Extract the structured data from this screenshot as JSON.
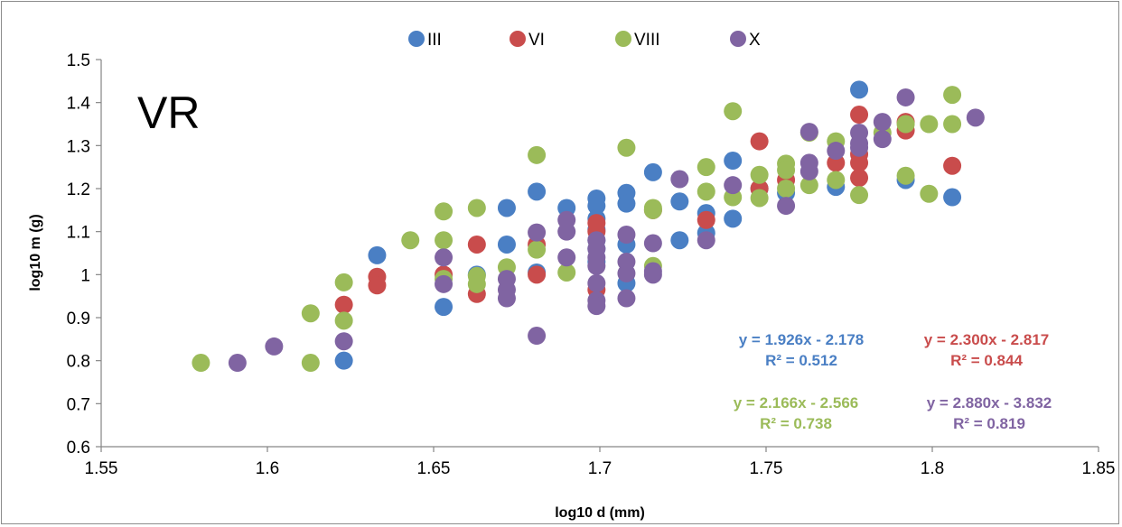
{
  "chart_data": {
    "type": "scatter",
    "panel_label": "VR",
    "xlabel": "log10 d (mm)",
    "ylabel": "log10 m (g)",
    "xlim": [
      1.55,
      1.85
    ],
    "ylim": [
      0.6,
      1.5
    ],
    "xticks": [
      "1.55",
      "1.6",
      "1.65",
      "1.7",
      "1.75",
      "1.8",
      "1.85"
    ],
    "yticks": [
      "0.6",
      "0.7",
      "0.8",
      "0.9",
      "1",
      "1.1",
      "1.2",
      "1.3",
      "1.4",
      "1.5"
    ],
    "grid": false,
    "legend_position": "top",
    "series": [
      {
        "name": "III",
        "color": "#4a7fc4",
        "points": [
          [
            1.623,
            0.8
          ],
          [
            1.633,
            1.045
          ],
          [
            1.653,
            0.925
          ],
          [
            1.663,
            1.0
          ],
          [
            1.672,
            1.07
          ],
          [
            1.672,
            1.155
          ],
          [
            1.681,
            1.193
          ],
          [
            1.681,
            1.005
          ],
          [
            1.69,
            1.155
          ],
          [
            1.699,
            1.177
          ],
          [
            1.699,
            1.16
          ],
          [
            1.699,
            1.13
          ],
          [
            1.699,
            1.105
          ],
          [
            1.699,
            1.08
          ],
          [
            1.699,
            1.06
          ],
          [
            1.699,
            1.03
          ],
          [
            1.708,
            1.19
          ],
          [
            1.708,
            1.165
          ],
          [
            1.708,
            1.07
          ],
          [
            1.708,
            0.98
          ],
          [
            1.716,
            1.238
          ],
          [
            1.724,
            1.17
          ],
          [
            1.724,
            1.08
          ],
          [
            1.732,
            1.143
          ],
          [
            1.732,
            1.097
          ],
          [
            1.74,
            1.265
          ],
          [
            1.74,
            1.13
          ],
          [
            1.748,
            1.2
          ],
          [
            1.756,
            1.19
          ],
          [
            1.771,
            1.204
          ],
          [
            1.778,
            1.43
          ],
          [
            1.792,
            1.22
          ],
          [
            1.806,
            1.18
          ]
        ]
      },
      {
        "name": "VI",
        "color": "#c94c4c",
        "points": [
          [
            1.623,
            0.93
          ],
          [
            1.633,
            0.995
          ],
          [
            1.633,
            0.975
          ],
          [
            1.653,
            1.0
          ],
          [
            1.663,
            1.07
          ],
          [
            1.663,
            0.955
          ],
          [
            1.681,
            1.07
          ],
          [
            1.681,
            1.0
          ],
          [
            1.699,
            1.12
          ],
          [
            1.699,
            1.1
          ],
          [
            1.699,
            0.965
          ],
          [
            1.716,
            1.15
          ],
          [
            1.732,
            1.127
          ],
          [
            1.748,
            1.31
          ],
          [
            1.748,
            1.2
          ],
          [
            1.756,
            1.22
          ],
          [
            1.771,
            1.26
          ],
          [
            1.778,
            1.372
          ],
          [
            1.778,
            1.28
          ],
          [
            1.778,
            1.26
          ],
          [
            1.778,
            1.225
          ],
          [
            1.792,
            1.355
          ],
          [
            1.792,
            1.335
          ],
          [
            1.806,
            1.253
          ]
        ]
      },
      {
        "name": "VIII",
        "color": "#9bbb59",
        "points": [
          [
            1.58,
            0.795
          ],
          [
            1.613,
            0.91
          ],
          [
            1.613,
            0.795
          ],
          [
            1.623,
            0.982
          ],
          [
            1.623,
            0.893
          ],
          [
            1.643,
            1.08
          ],
          [
            1.653,
            1.147
          ],
          [
            1.653,
            1.08
          ],
          [
            1.653,
            0.99
          ],
          [
            1.663,
            1.155
          ],
          [
            1.663,
            0.997
          ],
          [
            1.663,
            0.978
          ],
          [
            1.672,
            1.017
          ],
          [
            1.681,
            1.278
          ],
          [
            1.681,
            1.058
          ],
          [
            1.69,
            1.005
          ],
          [
            1.708,
            1.295
          ],
          [
            1.716,
            1.155
          ],
          [
            1.716,
            1.15
          ],
          [
            1.716,
            1.02
          ],
          [
            1.732,
            1.25
          ],
          [
            1.732,
            1.193
          ],
          [
            1.74,
            1.38
          ],
          [
            1.74,
            1.18
          ],
          [
            1.748,
            1.232
          ],
          [
            1.748,
            1.178
          ],
          [
            1.756,
            1.258
          ],
          [
            1.756,
            1.243
          ],
          [
            1.756,
            1.2
          ],
          [
            1.763,
            1.33
          ],
          [
            1.763,
            1.208
          ],
          [
            1.771,
            1.31
          ],
          [
            1.771,
            1.22
          ],
          [
            1.778,
            1.185
          ],
          [
            1.785,
            1.33
          ],
          [
            1.792,
            1.35
          ],
          [
            1.792,
            1.23
          ],
          [
            1.799,
            1.35
          ],
          [
            1.799,
            1.188
          ],
          [
            1.806,
            1.418
          ],
          [
            1.806,
            1.35
          ]
        ]
      },
      {
        "name": "X",
        "color": "#8064a2",
        "points": [
          [
            1.591,
            0.795
          ],
          [
            1.602,
            0.833
          ],
          [
            1.623,
            0.845
          ],
          [
            1.653,
            1.04
          ],
          [
            1.653,
            0.978
          ],
          [
            1.672,
            0.99
          ],
          [
            1.672,
            0.965
          ],
          [
            1.672,
            0.945
          ],
          [
            1.681,
            1.098
          ],
          [
            1.681,
            0.858
          ],
          [
            1.69,
            1.127
          ],
          [
            1.69,
            1.1
          ],
          [
            1.69,
            1.04
          ],
          [
            1.699,
            1.08
          ],
          [
            1.699,
            1.06
          ],
          [
            1.699,
            1.04
          ],
          [
            1.699,
            1.02
          ],
          [
            1.699,
            0.98
          ],
          [
            1.699,
            0.94
          ],
          [
            1.699,
            0.927
          ],
          [
            1.708,
            1.093
          ],
          [
            1.708,
            1.03
          ],
          [
            1.708,
            1.003
          ],
          [
            1.708,
            0.945
          ],
          [
            1.716,
            1.073
          ],
          [
            1.716,
            1.008
          ],
          [
            1.716,
            1.0
          ],
          [
            1.724,
            1.222
          ],
          [
            1.732,
            1.08
          ],
          [
            1.74,
            1.208
          ],
          [
            1.756,
            1.16
          ],
          [
            1.763,
            1.332
          ],
          [
            1.763,
            1.26
          ],
          [
            1.763,
            1.24
          ],
          [
            1.771,
            1.288
          ],
          [
            1.778,
            1.33
          ],
          [
            1.778,
            1.305
          ],
          [
            1.778,
            1.295
          ],
          [
            1.785,
            1.355
          ],
          [
            1.785,
            1.315
          ],
          [
            1.792,
            1.412
          ],
          [
            1.813,
            1.365
          ]
        ]
      }
    ],
    "annotations": [
      {
        "series": "III",
        "equation": "y = 1.926x - 2.178",
        "r2": "R² = 0.512",
        "color": "#4a7fc4"
      },
      {
        "series": "VI",
        "equation": "y = 2.300x - 2.817",
        "r2": "R² = 0.844",
        "color": "#c94c4c"
      },
      {
        "series": "VIII",
        "equation": "y = 2.166x - 2.566",
        "r2": "R² = 0.738",
        "color": "#9bbb59"
      },
      {
        "series": "X",
        "equation": "y = 2.880x - 3.832",
        "r2": "R² = 0.819",
        "color": "#8064a2"
      }
    ]
  }
}
